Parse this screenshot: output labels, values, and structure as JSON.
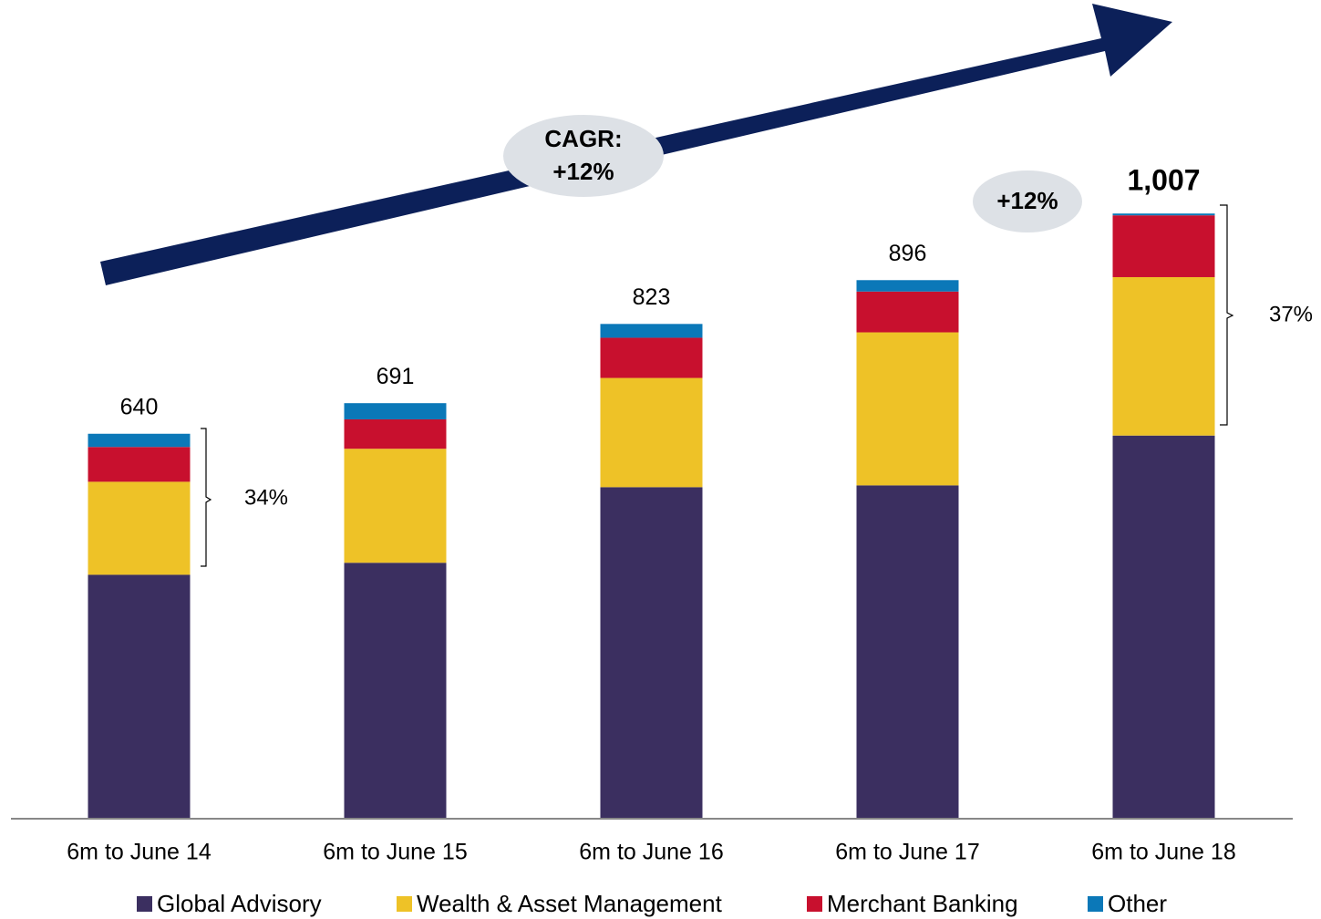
{
  "chart_data": {
    "type": "stacked_bar",
    "categories": [
      "6m to June 14",
      "6m to June 15",
      "6m to June 16",
      "6m to June 17",
      "6m to June 18"
    ],
    "series": [
      {
        "name": "Global Advisory",
        "color": "#3b2f60",
        "values": [
          405,
          425,
          551,
          554,
          637
        ]
      },
      {
        "name": "Wealth & Asset Management",
        "color": "#eec227",
        "values": [
          155,
          190,
          182,
          255,
          264
        ]
      },
      {
        "name": "Merchant Banking",
        "color": "#c8102e",
        "values": [
          58,
          49,
          67,
          68,
          103
        ]
      },
      {
        "name": "Other",
        "color": "#0b78b8",
        "values": [
          22,
          27,
          23,
          19,
          3
        ]
      }
    ],
    "totals": [
      640,
      691,
      823,
      896,
      1007
    ],
    "total_labels": [
      "640",
      "691",
      "823",
      "896",
      "1,007"
    ],
    "ylim": [
      0,
      1100
    ],
    "annotations": {
      "cagr": [
        "CAGR:",
        "+12%"
      ],
      "growth": "+12%",
      "share_first": "34%",
      "share_last": "37%"
    }
  }
}
